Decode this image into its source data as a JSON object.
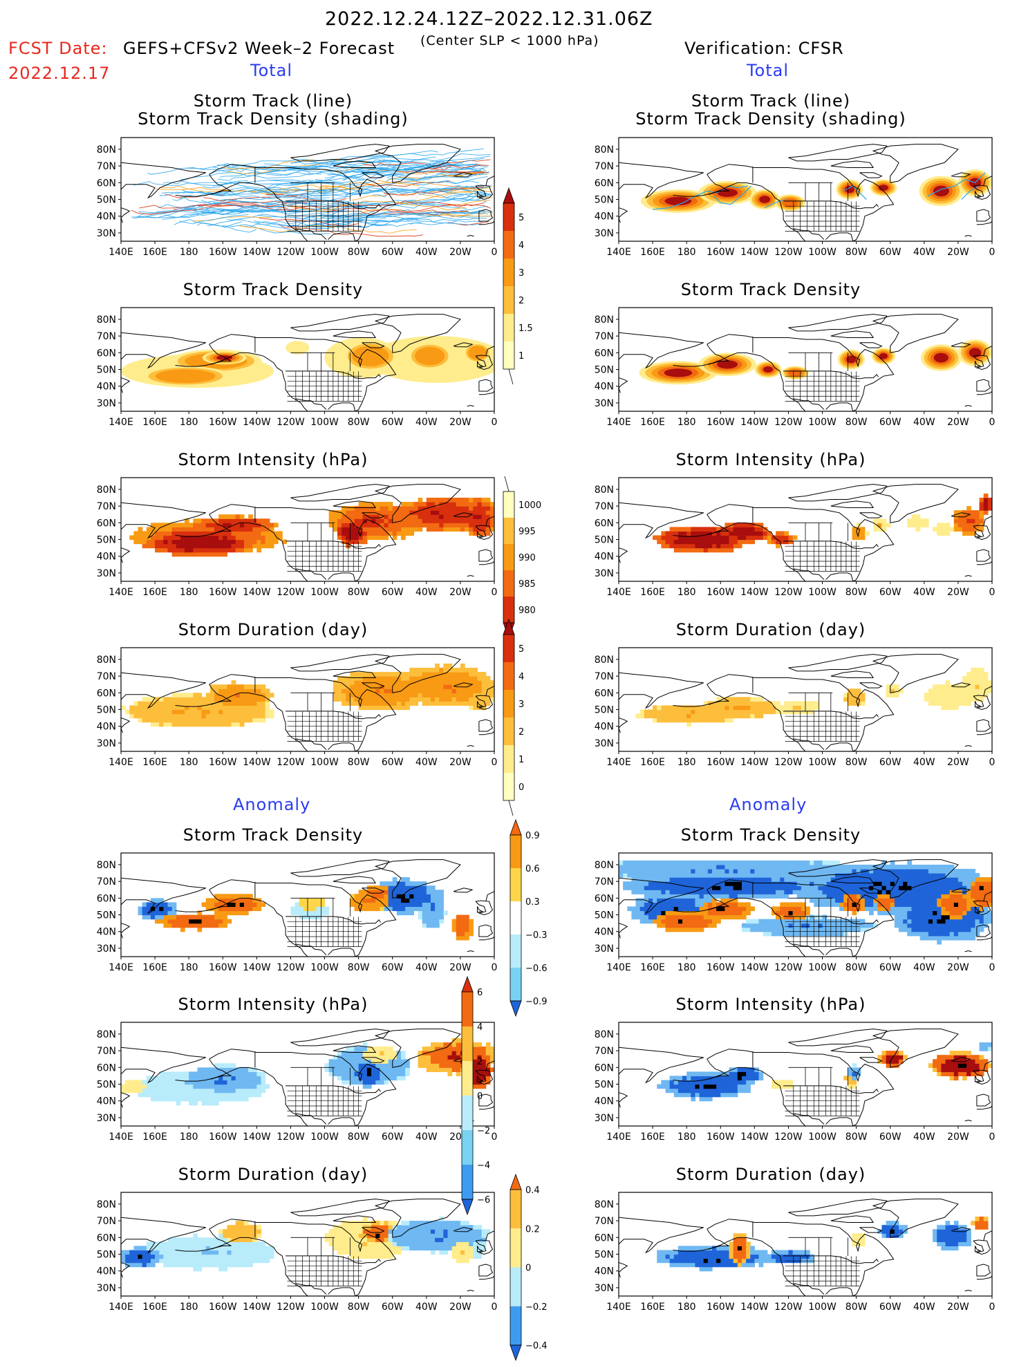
{
  "header": {
    "date_range": "2022.12.24.12Z–2022.12.31.06Z",
    "fcst_label": "FCST Date:",
    "fcst_date": "2022.12.17",
    "model": "GEFS+CFSv2 Week–2 Forecast",
    "criterion": "(Center SLP < 1000 hPa)",
    "verification": "Verification: CFSR"
  },
  "section_labels": {
    "total": "Total",
    "anomaly": "Anomaly"
  },
  "colors": {
    "accent_red": "#e8281e",
    "accent_blue": "#2a3cf0",
    "track_line": "#2aa6ee",
    "land": "#ffffff",
    "pos_ramp": [
      "#ffffc0",
      "#ffec8c",
      "#fdbe3c",
      "#f89a14",
      "#f26a12",
      "#d8300e",
      "#a80e0e"
    ],
    "neg_ramp": [
      "#e8f8ff",
      "#b8ecfb",
      "#7ad2f2",
      "#3e9cf0",
      "#1f64d8"
    ]
  },
  "axes": {
    "lon_labels": [
      "140E",
      "160E",
      "180",
      "160W",
      "140W",
      "120W",
      "100W",
      "80W",
      "60W",
      "40W",
      "20W",
      "0"
    ],
    "lat_labels": [
      "80N",
      "70N",
      "60N",
      "50N",
      "40N",
      "30N"
    ]
  },
  "panels": [
    {
      "id": "fc-track",
      "column": "forecast",
      "title_line1": "Storm Track (line)",
      "title_line2": "Storm Track Density (shading)",
      "field": "track-lines"
    },
    {
      "id": "obs-track",
      "column": "verification",
      "title_line1": "Storm Track (line)",
      "title_line2": "Storm Track Density (shading)",
      "field": "track-density-obs"
    },
    {
      "id": "fc-density",
      "column": "forecast",
      "title_line1": "Storm Track Density",
      "title_line2": "",
      "field": "density-fc"
    },
    {
      "id": "obs-density",
      "column": "verification",
      "title_line1": "Storm Track Density",
      "title_line2": "",
      "field": "density-obs"
    },
    {
      "id": "fc-intensity",
      "column": "forecast",
      "title_line1": "Storm Intensity (hPa)",
      "title_line2": "",
      "field": "intensity-fc"
    },
    {
      "id": "obs-intensity",
      "column": "verification",
      "title_line1": "Storm Intensity (hPa)",
      "title_line2": "",
      "field": "intensity-obs"
    },
    {
      "id": "fc-duration",
      "column": "forecast",
      "title_line1": "Storm Duration (day)",
      "title_line2": "",
      "field": "duration-fc"
    },
    {
      "id": "obs-duration",
      "column": "verification",
      "title_line1": "Storm Duration (day)",
      "title_line2": "",
      "field": "duration-obs"
    },
    {
      "id": "fc-anom-density",
      "column": "forecast",
      "title_line1": "Storm Track Density",
      "title_line2": "",
      "field": "anom-density-fc"
    },
    {
      "id": "obs-anom-density",
      "column": "verification",
      "title_line1": "Storm Track Density",
      "title_line2": "",
      "field": "anom-density-obs"
    },
    {
      "id": "fc-anom-intensity",
      "column": "forecast",
      "title_line1": "Storm Intensity (hPa)",
      "title_line2": "",
      "field": "anom-intensity-fc"
    },
    {
      "id": "obs-anom-intensity",
      "column": "verification",
      "title_line1": "Storm Intensity (hPa)",
      "title_line2": "",
      "field": "anom-intensity-obs"
    },
    {
      "id": "fc-anom-duration",
      "column": "forecast",
      "title_line1": "Storm Duration (day)",
      "title_line2": "",
      "field": "anom-duration-fc"
    },
    {
      "id": "obs-anom-duration",
      "column": "verification",
      "title_line1": "Storm Duration (day)",
      "title_line2": "",
      "field": "anom-duration-obs"
    }
  ],
  "colorbars": [
    {
      "id": "cb-density",
      "labels": [
        "5",
        "4",
        "3",
        "2",
        "1.5",
        "1"
      ],
      "arrow_top": true,
      "arrow_bottom": false,
      "colors": [
        "#a80e0e",
        "#d8300e",
        "#f26a12",
        "#f89a14",
        "#fdbe3c",
        "#ffec8c",
        "#ffffc0"
      ]
    },
    {
      "id": "cb-intensity",
      "labels": [
        "1000",
        "995",
        "990",
        "985",
        "980"
      ],
      "arrow_top": false,
      "arrow_bottom": true,
      "colors": [
        "#ffffc0",
        "#fdbe3c",
        "#f89a14",
        "#f26a12",
        "#d8300e",
        "#a80e0e"
      ]
    },
    {
      "id": "cb-duration",
      "labels": [
        "5",
        "4",
        "3",
        "2",
        "1",
        "0"
      ],
      "arrow_top": true,
      "arrow_bottom": false,
      "colors": [
        "#a80e0e",
        "#d8300e",
        "#f26a12",
        "#f89a14",
        "#fdbe3c",
        "#ffec8c",
        "#ffffc0"
      ]
    },
    {
      "id": "cb-anom-density",
      "labels": [
        "0.9",
        "0.6",
        "0.3",
        "−0.3",
        "−0.6",
        "−0.9"
      ],
      "arrow_top": true,
      "arrow_bottom": true,
      "colors": [
        "#f26a12",
        "#f89a14",
        "#ffd64a",
        "#ffffff",
        "#b8ecfb",
        "#7ad2f2",
        "#1f64d8"
      ]
    },
    {
      "id": "cb-anom-intensity",
      "labels": [
        "6",
        "4",
        "2",
        "0",
        "−2",
        "−4",
        "−6"
      ],
      "arrow_top": true,
      "arrow_bottom": true,
      "colors": [
        "#d8300e",
        "#f26a12",
        "#fdbe3c",
        "#ffec8c",
        "#b8ecfb",
        "#7ad2f2",
        "#3e9cf0",
        "#1f64d8"
      ]
    },
    {
      "id": "cb-anom-duration",
      "labels": [
        "0.4",
        "0.2",
        "0",
        "−0.2",
        "−0.4"
      ],
      "arrow_top": true,
      "arrow_bottom": true,
      "colors": [
        "#f26a12",
        "#fdbe3c",
        "#ffec8c",
        "#b8ecfb",
        "#3e9cf0",
        "#1f64d8"
      ]
    }
  ]
}
